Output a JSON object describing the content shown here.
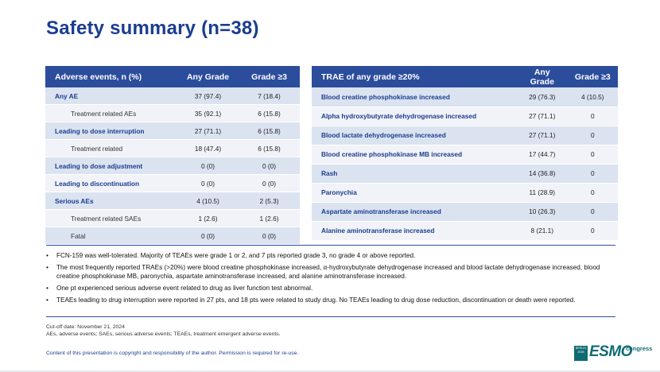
{
  "title": "Safety summary (n=38)",
  "table1": {
    "headers": [
      "Adverse events, n (%)",
      "Any Grade",
      "Grade ≥3"
    ],
    "rows": [
      {
        "label": "Any AE",
        "any": "37 (97.4)",
        "g3": "7 (18.4)"
      },
      {
        "label": "Treatment related AEs",
        "any": "35 (92.1)",
        "g3": "6 (15.8)"
      },
      {
        "label": "Leading to dose interruption",
        "any": "27 (71.1)",
        "g3": "6 (15.8)"
      },
      {
        "label": "Treatment related",
        "any": "18 (47.4)",
        "g3": "6 (15.8)"
      },
      {
        "label": "Leading to dose adjustment",
        "any": "0 (0)",
        "g3": "0 (0)"
      },
      {
        "label": "Leading to discontinuation",
        "any": "0 (0)",
        "g3": "0 (0)"
      },
      {
        "label": "Serious AEs",
        "any": "4 (10.5)",
        "g3": "2 (5.3)"
      },
      {
        "label": "Treatment related SAEs",
        "any": "1 (2.6)",
        "g3": "1 (2.6)"
      },
      {
        "label": "Fatal",
        "any": "0 (0)",
        "g3": "0 (0)"
      }
    ]
  },
  "table2": {
    "headers": [
      "TRAE of any grade ≥20%",
      "Any Grade",
      "Grade ≥3"
    ],
    "rows": [
      {
        "label": "Blood creatine phosphokinase increased",
        "any": "29 (76.3)",
        "g3": "4 (10.5)"
      },
      {
        "label": "Alpha hydroxybutyrate dehydrogenase increased",
        "any": "27 (71.1)",
        "g3": "0"
      },
      {
        "label": "Blood lactate dehydrogenase increased",
        "any": "27 (71.1)",
        "g3": "0"
      },
      {
        "label": "Blood creatine phosphokinase MB increased",
        "any": "17 (44.7)",
        "g3": "0"
      },
      {
        "label": "Rash",
        "any": "14 (36.8)",
        "g3": "0"
      },
      {
        "label": "Paronychia",
        "any": "11 (28.9)",
        "g3": "0"
      },
      {
        "label": "Aspartate aminotransferase increased",
        "any": "10 (26.3)",
        "g3": "0"
      },
      {
        "label": "Alanine aminotransferase increased",
        "any": "8 (21.1)",
        "g3": "0"
      }
    ]
  },
  "bullets": [
    "FCN-159 was well-tolerated. Majority of TEAEs were grade 1 or 2, and 7 pts reported grade 3, no grade 4 or above reported.",
    "The most frequently reported TRAEs (>20%) were blood creatine phosphokinase increased, α-hydroxybutyrate dehydrogenase increased and blood lactate dehydrogenase increased, blood creatine phosphokinase MB, paronychia, aspartate aminotransferase increased, and alanine aminotransferase increased.",
    "One pt experienced serious adverse event related to drug as liver function test abnormal.",
    "TEAEs leading to drug interruption were reported in 27 pts, and 18 pts were related to study drug. No TEAEs leading to drug dose reduction, discontinuation or death were reported."
  ],
  "footnote": {
    "line1": "Cut-off date: November 21, 2024",
    "line2": "AEs, adverse events; SAEs, serious adverse events; TEAEs, treatment emergent adverse events."
  },
  "copyright": "Content of this presentation is copyright and responsibility of the author. Permission is required for re-use.",
  "logo": {
    "box_line1": "BERLIN",
    "box_line2": "2025",
    "main": "ESMO",
    "suffix": "congress",
    "color": "#0f6b73"
  },
  "colors": {
    "title": "#1a3d8f",
    "header_bg": "#2b4d9c",
    "row_odd": "#dbe3f0",
    "row_even": "#f1f3f8"
  }
}
